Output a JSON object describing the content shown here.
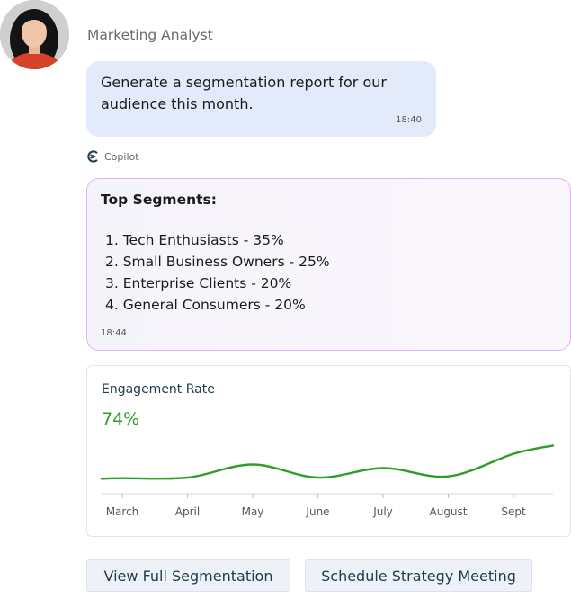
{
  "user": {
    "name": "Marketing Analyst",
    "message": "Generate a segmentation report for our audience this month.",
    "time": "18:40"
  },
  "assistant": {
    "label": "Copilot",
    "title": "Top Segments:",
    "segments": [
      "1. Tech Enthusiasts - 35%",
      "2. Small Business Owners - 25%",
      "3. Enterprise Clients - 20%",
      "4. General Consumers - 20%"
    ],
    "time": "18:44"
  },
  "engagement": {
    "title": "Engagement Rate",
    "value": "74%",
    "line_color": "#2e9e26"
  },
  "chart_data": {
    "type": "line",
    "categories": [
      "March",
      "April",
      "May",
      "June",
      "July",
      "August",
      "Sept"
    ],
    "series": [
      {
        "values": [
          5,
          6,
          28,
          6,
          22,
          8,
          46
        ]
      }
    ],
    "ylim": [
      0,
      100
    ],
    "grid": false
  },
  "actions": {
    "view_label": "View Full Segmentation",
    "schedule_label": "Schedule Strategy Meeting"
  }
}
